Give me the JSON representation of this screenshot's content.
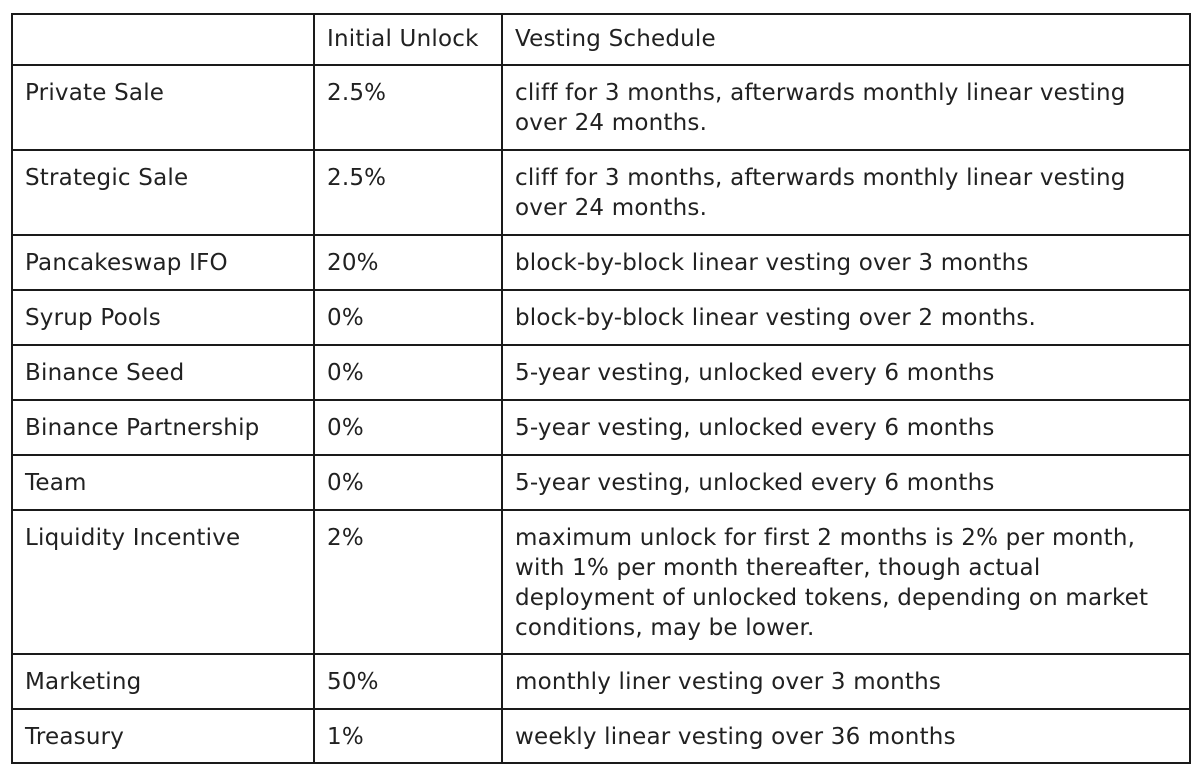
{
  "table": {
    "columns": {
      "category": "",
      "initial_unlock": "Initial Unlock",
      "vesting_schedule": "Vesting Schedule"
    },
    "rows": [
      {
        "category": "Private Sale",
        "initial_unlock": "2.5%",
        "vesting_schedule": "cliff for 3 months, afterwards monthly linear vesting over 24 months."
      },
      {
        "category": "Strategic Sale",
        "initial_unlock": "2.5%",
        "vesting_schedule": "cliff for 3 months, afterwards monthly linear vesting over 24 months."
      },
      {
        "category": "Pancakeswap IFO",
        "initial_unlock": "20%",
        "vesting_schedule": "block-by-block linear vesting over 3 months"
      },
      {
        "category": "Syrup Pools",
        "initial_unlock": "0%",
        "vesting_schedule": "block-by-block linear vesting over 2 months."
      },
      {
        "category": "Binance Seed",
        "initial_unlock": "0%",
        "vesting_schedule": "5-year vesting, unlocked every 6 months"
      },
      {
        "category": "Binance Partnership",
        "initial_unlock": "0%",
        "vesting_schedule": "5-year vesting, unlocked every 6 months"
      },
      {
        "category": "Team",
        "initial_unlock": "0%",
        "vesting_schedule": "5-year vesting, unlocked every 6 months"
      },
      {
        "category": "Liquidity Incentive",
        "initial_unlock": "2%",
        "vesting_schedule": "maximum unlock for first 2 months is 2% per month, with 1% per month thereafter, though actual deployment of unlocked tokens, depending on market conditions, may be lower."
      },
      {
        "category": "Marketing",
        "initial_unlock": "50%",
        "vesting_schedule": "monthly liner vesting over 3 months"
      },
      {
        "category": "Treasury",
        "initial_unlock": "1%",
        "vesting_schedule": "weekly linear vesting over 36 months"
      }
    ]
  },
  "colors": {
    "border": "#1a1a1a",
    "text": "#212121",
    "background": "#ffffff"
  }
}
